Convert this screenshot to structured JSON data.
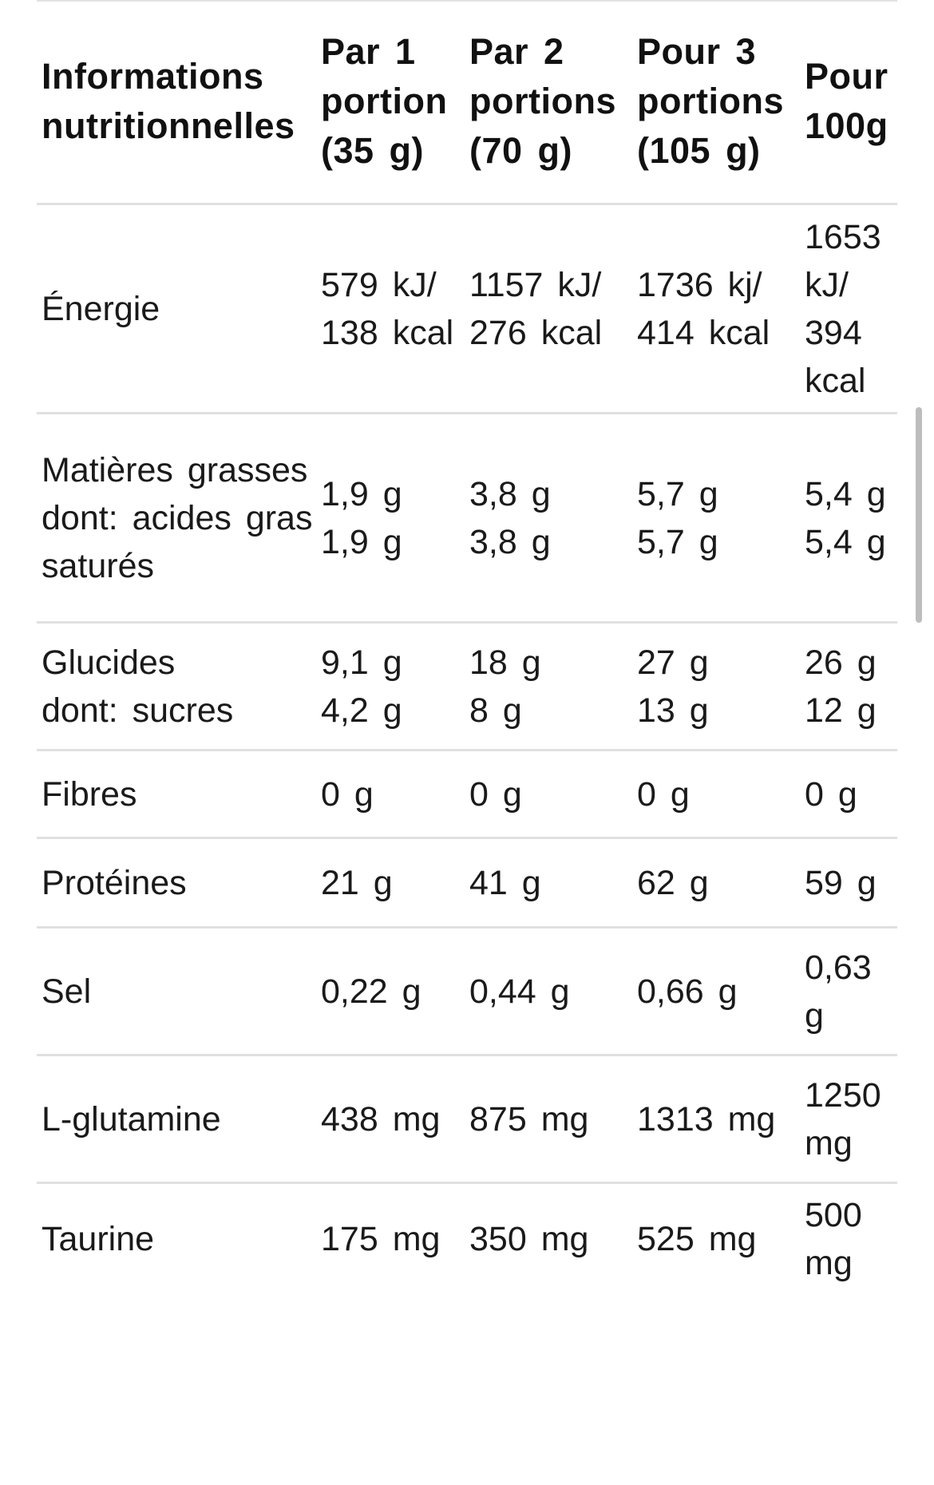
{
  "table": {
    "headers": [
      "Informations nutritionnelles",
      "Par 1 portion (35 g)",
      "Par 2 portions (70 g)",
      "Pour 3 portions (105 g)",
      "Pour 100g"
    ],
    "rows": [
      {
        "label": [
          "Énergie"
        ],
        "c1": [
          "579 kJ/ 138 kcal"
        ],
        "c2": [
          "1157 kJ/ 276 kcal"
        ],
        "c3": [
          "1736 kj/ 414 kcal"
        ],
        "c4": [
          "1653 kJ/ 394 kcal"
        ]
      },
      {
        "label": [
          "Matières grasses",
          "dont: acides gras saturés"
        ],
        "c1": [
          "1,9 g",
          "1,9 g"
        ],
        "c2": [
          "3,8 g",
          "3,8 g"
        ],
        "c3": [
          "5,7 g",
          "5,7 g"
        ],
        "c4": [
          "5,4 g",
          "5,4 g"
        ]
      },
      {
        "label": [
          "Glucides",
          "dont: sucres"
        ],
        "c1": [
          "9,1 g",
          "4,2 g"
        ],
        "c2": [
          "18 g",
          "8 g"
        ],
        "c3": [
          "27 g",
          "13 g"
        ],
        "c4": [
          "26 g",
          "12 g"
        ]
      },
      {
        "label": [
          "Fibres"
        ],
        "c1": [
          "0 g"
        ],
        "c2": [
          "0 g"
        ],
        "c3": [
          "0 g"
        ],
        "c4": [
          "0 g"
        ]
      },
      {
        "label": [
          "Protéines"
        ],
        "c1": [
          "21 g"
        ],
        "c2": [
          "41 g"
        ],
        "c3": [
          "62 g"
        ],
        "c4": [
          "59 g"
        ]
      },
      {
        "label": [
          "Sel"
        ],
        "c1": [
          "0,22 g"
        ],
        "c2": [
          "0,44 g"
        ],
        "c3": [
          "0,66 g"
        ],
        "c4": [
          "0,63 g"
        ]
      },
      {
        "label": [
          "L-glutamine"
        ],
        "c1": [
          "438 mg"
        ],
        "c2": [
          "875 mg"
        ],
        "c3": [
          "1313 mg"
        ],
        "c4": [
          "1250 mg"
        ]
      },
      {
        "label": [
          "Taurine"
        ],
        "c1": [
          "175 mg"
        ],
        "c2": [
          "350 mg"
        ],
        "c3": [
          "525 mg"
        ],
        "c4": [
          "500 mg"
        ]
      }
    ]
  },
  "colors": {
    "text": "#111111",
    "divider": "#e0e0e0",
    "scrollbar": "#bdbdbd",
    "background": "#ffffff"
  }
}
